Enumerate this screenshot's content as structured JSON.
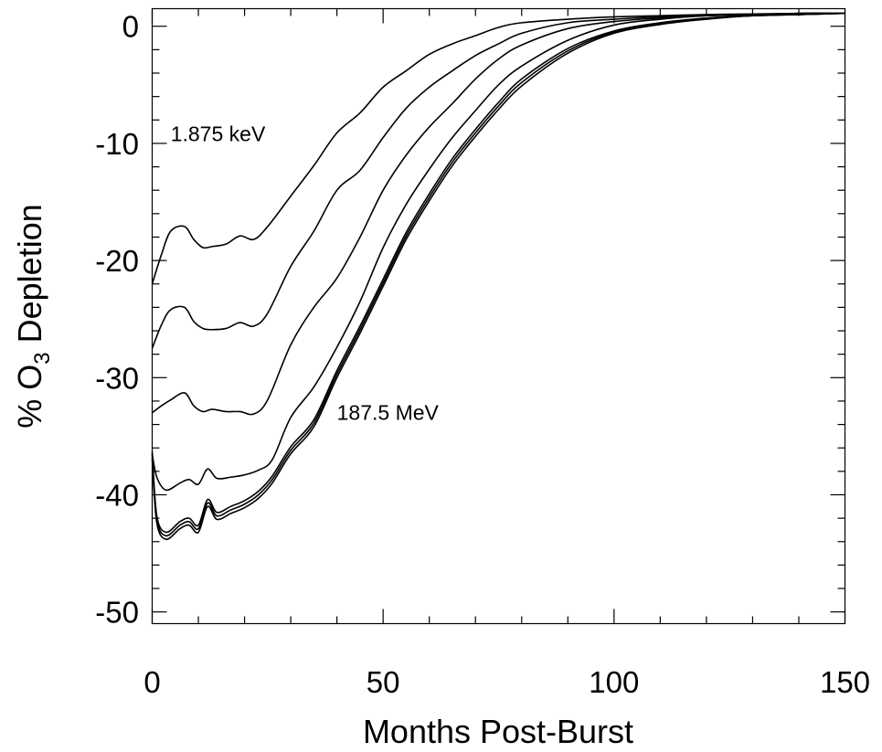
{
  "chart_data": {
    "type": "line",
    "title": "",
    "xlabel": "Months Post-Burst",
    "ylabel": {
      "prefix": "% O",
      "subscript": "3",
      "suffix": " Depletion"
    },
    "xlim": [
      0,
      150
    ],
    "ylim": [
      -51,
      1.5
    ],
    "x_ticks": [
      0,
      50,
      100,
      150
    ],
    "y_ticks": [
      0,
      -10,
      -20,
      -30,
      -40,
      -50
    ],
    "x_minor_step": 10,
    "y_minor_step": 2,
    "grid": false,
    "legend": "none",
    "annotations": [
      {
        "text": "1.875 keV",
        "x": 4,
        "y": -9.8
      },
      {
        "text": "187.5 MeV",
        "x": 40,
        "y": -33.6
      }
    ],
    "series": [
      {
        "x": [
          0,
          2,
          4,
          7,
          9,
          11,
          13,
          16,
          19,
          22,
          25,
          30,
          35,
          40,
          45,
          50,
          55,
          60,
          65,
          70,
          75,
          80,
          90,
          100,
          110,
          120,
          130,
          140,
          150
        ],
        "y": [
          -22,
          -19.5,
          -17.5,
          -17.1,
          -18.2,
          -18.9,
          -18.8,
          -18.6,
          -17.9,
          -18.2,
          -17.1,
          -14.5,
          -11.9,
          -9.1,
          -7.4,
          -5.2,
          -3.8,
          -2.4,
          -1.5,
          -0.8,
          -0.1,
          0.3,
          0.6,
          0.8,
          0.9,
          1.0,
          1.05,
          1.1,
          1.1
        ]
      },
      {
        "x": [
          0,
          2,
          4,
          7,
          9,
          11,
          13,
          16,
          19,
          22,
          25,
          30,
          35,
          40,
          45,
          50,
          55,
          60,
          65,
          70,
          75,
          80,
          90,
          100,
          110,
          120,
          130,
          140,
          150
        ],
        "y": [
          -27.5,
          -25.5,
          -24.2,
          -24.0,
          -25.2,
          -25.8,
          -25.9,
          -25.8,
          -25.3,
          -25.6,
          -24.5,
          -20.5,
          -17.5,
          -14.0,
          -12.3,
          -9.5,
          -7.0,
          -5.2,
          -3.8,
          -2.5,
          -1.5,
          -0.6,
          0.3,
          0.6,
          0.8,
          0.9,
          1.0,
          1.1,
          1.1
        ]
      },
      {
        "x": [
          0,
          2,
          4,
          7,
          9,
          11,
          13,
          16,
          19,
          22,
          25,
          30,
          35,
          40,
          45,
          50,
          55,
          60,
          65,
          70,
          75,
          80,
          90,
          100,
          110,
          120,
          130,
          140,
          150
        ],
        "y": [
          -33,
          -32.4,
          -31.9,
          -31.3,
          -32.4,
          -32.9,
          -32.7,
          -32.9,
          -32.9,
          -33.1,
          -31.9,
          -27.2,
          -24.0,
          -21.5,
          -18.0,
          -14.0,
          -11.0,
          -8.6,
          -6.6,
          -4.5,
          -2.8,
          -1.6,
          -0.2,
          0.4,
          0.7,
          0.9,
          1.0,
          1.1,
          1.1
        ]
      },
      {
        "x": [
          0,
          1,
          3,
          6,
          8,
          10,
          12,
          14,
          17,
          20,
          23,
          26,
          30,
          35,
          40,
          45,
          50,
          55,
          60,
          65,
          70,
          75,
          80,
          90,
          100,
          110,
          120,
          130,
          140,
          150
        ],
        "y": [
          -36.5,
          -38.5,
          -39.6,
          -39.0,
          -38.7,
          -39.1,
          -37.8,
          -38.6,
          -38.5,
          -38.3,
          -37.9,
          -37.0,
          -33.4,
          -30.8,
          -27.4,
          -23.5,
          -18.9,
          -15.2,
          -12.2,
          -9.5,
          -7.2,
          -5.0,
          -3.4,
          -1.2,
          0.1,
          0.6,
          0.9,
          1.0,
          1.1,
          1.1
        ]
      },
      {
        "x": [
          0,
          1,
          3,
          6,
          8,
          10,
          12,
          14,
          17,
          20,
          23,
          26,
          30,
          35,
          40,
          45,
          50,
          55,
          60,
          65,
          70,
          75,
          80,
          90,
          100,
          110,
          120,
          130,
          140,
          150
        ],
        "y": [
          -36.3,
          -41.8,
          -43.2,
          -42.3,
          -42.0,
          -42.6,
          -40.4,
          -41.5,
          -41.0,
          -40.5,
          -39.7,
          -38.4,
          -35.9,
          -33.6,
          -29.4,
          -25.6,
          -21.6,
          -17.6,
          -14.3,
          -11.3,
          -8.8,
          -6.5,
          -4.5,
          -1.9,
          -0.4,
          0.3,
          0.7,
          0.9,
          1.0,
          1.1
        ]
      },
      {
        "x": [
          0,
          1,
          3,
          6,
          8,
          10,
          12,
          14,
          17,
          20,
          23,
          26,
          30,
          35,
          40,
          45,
          50,
          55,
          60,
          65,
          70,
          75,
          80,
          90,
          100,
          110,
          120,
          130,
          140,
          150
        ],
        "y": [
          -36.6,
          -42.1,
          -43.5,
          -42.6,
          -42.3,
          -42.9,
          -40.7,
          -41.8,
          -41.3,
          -40.8,
          -40.0,
          -38.7,
          -36.2,
          -33.9,
          -29.7,
          -25.9,
          -21.9,
          -17.9,
          -14.6,
          -11.6,
          -9.1,
          -6.8,
          -4.8,
          -2.1,
          -0.5,
          0.2,
          0.65,
          0.9,
          1.0,
          1.1
        ]
      },
      {
        "x": [
          0,
          1,
          3,
          6,
          8,
          10,
          12,
          14,
          17,
          20,
          23,
          26,
          30,
          35,
          40,
          45,
          50,
          55,
          60,
          65,
          70,
          75,
          80,
          90,
          100,
          110,
          120,
          130,
          140,
          150
        ],
        "y": [
          -36.9,
          -42.4,
          -43.8,
          -42.9,
          -42.6,
          -43.2,
          -41.0,
          -42.1,
          -41.6,
          -41.1,
          -40.3,
          -39.0,
          -36.5,
          -34.2,
          -30.0,
          -26.2,
          -22.2,
          -18.2,
          -14.9,
          -11.9,
          -9.4,
          -7.1,
          -5.1,
          -2.3,
          -0.6,
          0.15,
          0.6,
          0.9,
          1.0,
          1.1
        ]
      }
    ]
  }
}
